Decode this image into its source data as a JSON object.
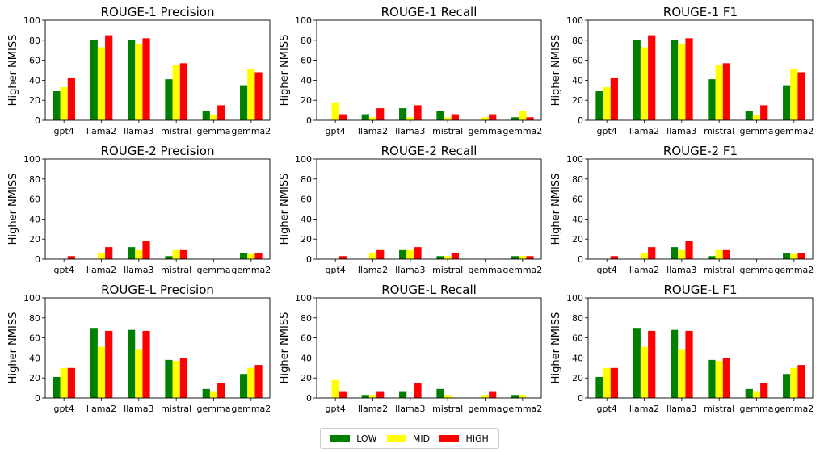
{
  "chart_data": [
    {
      "type": "bar",
      "title": "ROUGE-1 Precision",
      "ylabel": "Higher NMISS",
      "ylim": [
        0,
        100
      ],
      "yticks": [
        0,
        20,
        40,
        60,
        80,
        100
      ],
      "categories": [
        "gpt4",
        "llama2",
        "llama3",
        "mistral",
        "gemma",
        "gemma2"
      ],
      "series": [
        {
          "name": "LOW",
          "values": [
            29,
            80,
            80,
            41,
            9,
            35
          ]
        },
        {
          "name": "MID",
          "values": [
            33,
            73,
            76,
            55,
            5,
            51
          ]
        },
        {
          "name": "HIGH",
          "values": [
            42,
            85,
            82,
            57,
            15,
            48
          ]
        }
      ]
    },
    {
      "type": "bar",
      "title": "ROUGE-1 Recall",
      "ylabel": "Higher NMISS",
      "ylim": [
        0,
        100
      ],
      "yticks": [
        0,
        20,
        40,
        60,
        80,
        100
      ],
      "categories": [
        "gpt4",
        "llama2",
        "llama3",
        "mistral",
        "gemma",
        "gemma2"
      ],
      "series": [
        {
          "name": "LOW",
          "values": [
            0,
            6,
            12,
            9,
            0,
            3
          ]
        },
        {
          "name": "MID",
          "values": [
            18,
            3,
            3,
            3,
            3,
            9
          ]
        },
        {
          "name": "HIGH",
          "values": [
            6,
            12,
            15,
            6,
            6,
            3
          ]
        }
      ]
    },
    {
      "type": "bar",
      "title": "ROUGE-1 F1",
      "ylabel": "Higher NMISS",
      "ylim": [
        0,
        100
      ],
      "yticks": [
        0,
        20,
        40,
        60,
        80,
        100
      ],
      "categories": [
        "gpt4",
        "llama2",
        "llama3",
        "mistral",
        "gemma",
        "gemma2"
      ],
      "series": [
        {
          "name": "LOW",
          "values": [
            29,
            80,
            80,
            41,
            9,
            35
          ]
        },
        {
          "name": "MID",
          "values": [
            33,
            73,
            76,
            55,
            5,
            51
          ]
        },
        {
          "name": "HIGH",
          "values": [
            42,
            85,
            82,
            57,
            15,
            48
          ]
        }
      ]
    },
    {
      "type": "bar",
      "title": "ROUGE-2 Precision",
      "ylabel": "Higher NMISS",
      "ylim": [
        0,
        100
      ],
      "yticks": [
        0,
        20,
        40,
        60,
        80,
        100
      ],
      "categories": [
        "gpt4",
        "llama2",
        "llama3",
        "mistral",
        "gemma",
        "gemma2"
      ],
      "series": [
        {
          "name": "LOW",
          "values": [
            0,
            0,
            12,
            3,
            0,
            6
          ]
        },
        {
          "name": "MID",
          "values": [
            0,
            6,
            9,
            9,
            0,
            5
          ]
        },
        {
          "name": "HIGH",
          "values": [
            3,
            12,
            18,
            9,
            0,
            6
          ]
        }
      ]
    },
    {
      "type": "bar",
      "title": "ROUGE-2 Recall",
      "ylabel": "Higher NMISS",
      "ylim": [
        0,
        100
      ],
      "yticks": [
        0,
        20,
        40,
        60,
        80,
        100
      ],
      "categories": [
        "gpt4",
        "llama2",
        "llama3",
        "mistral",
        "gemma",
        "gemma2"
      ],
      "series": [
        {
          "name": "LOW",
          "values": [
            0,
            0,
            9,
            3,
            0,
            3
          ]
        },
        {
          "name": "MID",
          "values": [
            0,
            6,
            9,
            3,
            0,
            3
          ]
        },
        {
          "name": "HIGH",
          "values": [
            3,
            9,
            12,
            6,
            0,
            3
          ]
        }
      ]
    },
    {
      "type": "bar",
      "title": "ROUGE-2 F1",
      "ylabel": "Higher NMISS",
      "ylim": [
        0,
        100
      ],
      "yticks": [
        0,
        20,
        40,
        60,
        80,
        100
      ],
      "categories": [
        "gpt4",
        "llama2",
        "llama3",
        "mistral",
        "gemma",
        "gemma2"
      ],
      "series": [
        {
          "name": "LOW",
          "values": [
            0,
            0,
            12,
            3,
            0,
            6
          ]
        },
        {
          "name": "MID",
          "values": [
            0,
            6,
            9,
            9,
            0,
            5
          ]
        },
        {
          "name": "HIGH",
          "values": [
            3,
            12,
            18,
            9,
            0,
            6
          ]
        }
      ]
    },
    {
      "type": "bar",
      "title": "ROUGE-L Precision",
      "ylabel": "Higher NMISS",
      "ylim": [
        0,
        100
      ],
      "yticks": [
        0,
        20,
        40,
        60,
        80,
        100
      ],
      "categories": [
        "gpt4",
        "llama2",
        "llama3",
        "mistral",
        "gemma",
        "gemma2"
      ],
      "series": [
        {
          "name": "LOW",
          "values": [
            21,
            70,
            68,
            38,
            9,
            24
          ]
        },
        {
          "name": "MID",
          "values": [
            30,
            51,
            48,
            37,
            6,
            30
          ]
        },
        {
          "name": "HIGH",
          "values": [
            30,
            67,
            67,
            40,
            15,
            33
          ]
        }
      ]
    },
    {
      "type": "bar",
      "title": "ROUGE-L Recall",
      "ylabel": "Higher NMISS",
      "ylim": [
        0,
        100
      ],
      "yticks": [
        0,
        20,
        40,
        60,
        80,
        100
      ],
      "categories": [
        "gpt4",
        "llama2",
        "llama3",
        "mistral",
        "gemma",
        "gemma2"
      ],
      "series": [
        {
          "name": "LOW",
          "values": [
            0,
            3,
            6,
            9,
            0,
            3
          ]
        },
        {
          "name": "MID",
          "values": [
            18,
            3,
            0,
            3,
            3,
            3
          ]
        },
        {
          "name": "HIGH",
          "values": [
            6,
            6,
            15,
            0,
            6,
            0
          ]
        }
      ]
    },
    {
      "type": "bar",
      "title": "ROUGE-L F1",
      "ylabel": "Higher NMISS",
      "ylim": [
        0,
        100
      ],
      "yticks": [
        0,
        20,
        40,
        60,
        80,
        100
      ],
      "categories": [
        "gpt4",
        "llama2",
        "llama3",
        "mistral",
        "gemma",
        "gemma2"
      ],
      "series": [
        {
          "name": "LOW",
          "values": [
            21,
            70,
            68,
            38,
            9,
            24
          ]
        },
        {
          "name": "MID",
          "values": [
            30,
            51,
            48,
            37,
            6,
            30
          ]
        },
        {
          "name": "HIGH",
          "values": [
            30,
            67,
            67,
            40,
            15,
            33
          ]
        }
      ]
    }
  ],
  "colors": {
    "LOW": "#008000",
    "MID": "#ffff00",
    "HIGH": "#ff0000"
  },
  "legend": {
    "position": "bottom-center",
    "items": [
      {
        "label": "LOW",
        "color": "#008000"
      },
      {
        "label": "MID",
        "color": "#ffff00"
      },
      {
        "label": "HIGH",
        "color": "#ff0000"
      }
    ]
  }
}
